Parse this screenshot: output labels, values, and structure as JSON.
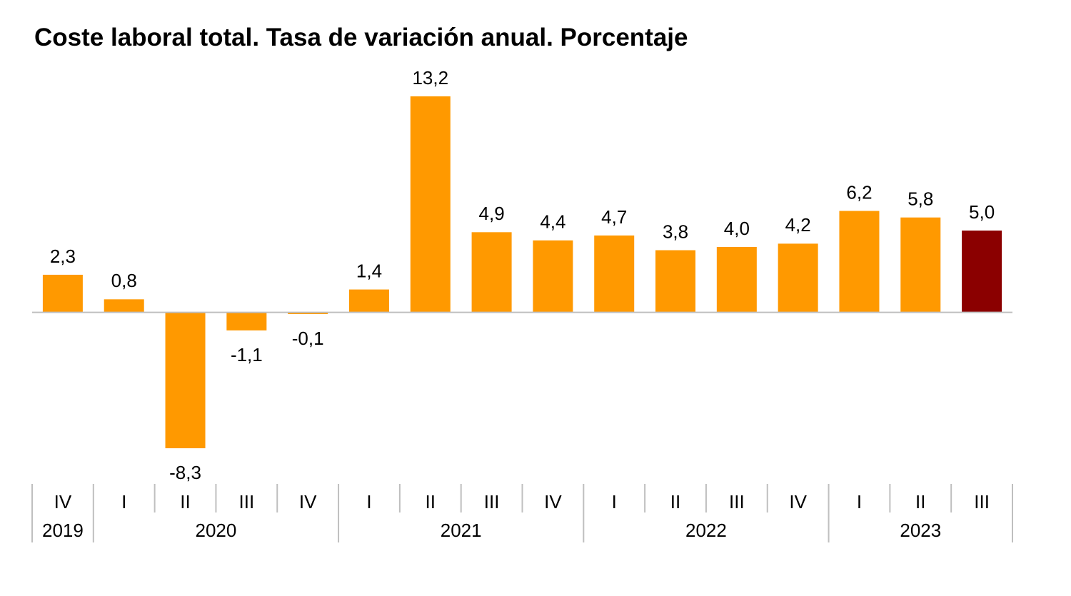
{
  "chart_data": {
    "type": "bar",
    "title": "Coste laboral total. Tasa de variación anual. Porcentaje",
    "category_groups": [
      {
        "label": "2019",
        "categories": [
          "IV"
        ]
      },
      {
        "label": "2020",
        "categories": [
          "I",
          "II",
          "III",
          "IV"
        ]
      },
      {
        "label": "2021",
        "categories": [
          "I",
          "II",
          "III",
          "IV"
        ]
      },
      {
        "label": "2022",
        "categories": [
          "I",
          "II",
          "III",
          "IV"
        ]
      },
      {
        "label": "2023",
        "categories": [
          "I",
          "II",
          "III"
        ]
      }
    ],
    "values": [
      2.3,
      0.8,
      -8.3,
      -1.1,
      -0.1,
      1.4,
      13.2,
      4.9,
      4.4,
      4.7,
      3.8,
      4.0,
      4.2,
      6.2,
      5.8,
      5.0
    ],
    "value_labels": [
      "2,3",
      "0,8",
      "-8,3",
      "-1,1",
      "-0,1",
      "1,4",
      "13,2",
      "4,9",
      "4,4",
      "4,7",
      "3,8",
      "4,0",
      "4,2",
      "6,2",
      "5,8",
      "5,0"
    ],
    "colors": [
      "#ff9900",
      "#ff9900",
      "#ff9900",
      "#ff9900",
      "#ff9900",
      "#ff9900",
      "#ff9900",
      "#ff9900",
      "#ff9900",
      "#ff9900",
      "#ff9900",
      "#ff9900",
      "#ff9900",
      "#ff9900",
      "#ff9900",
      "#8b0000"
    ]
  }
}
